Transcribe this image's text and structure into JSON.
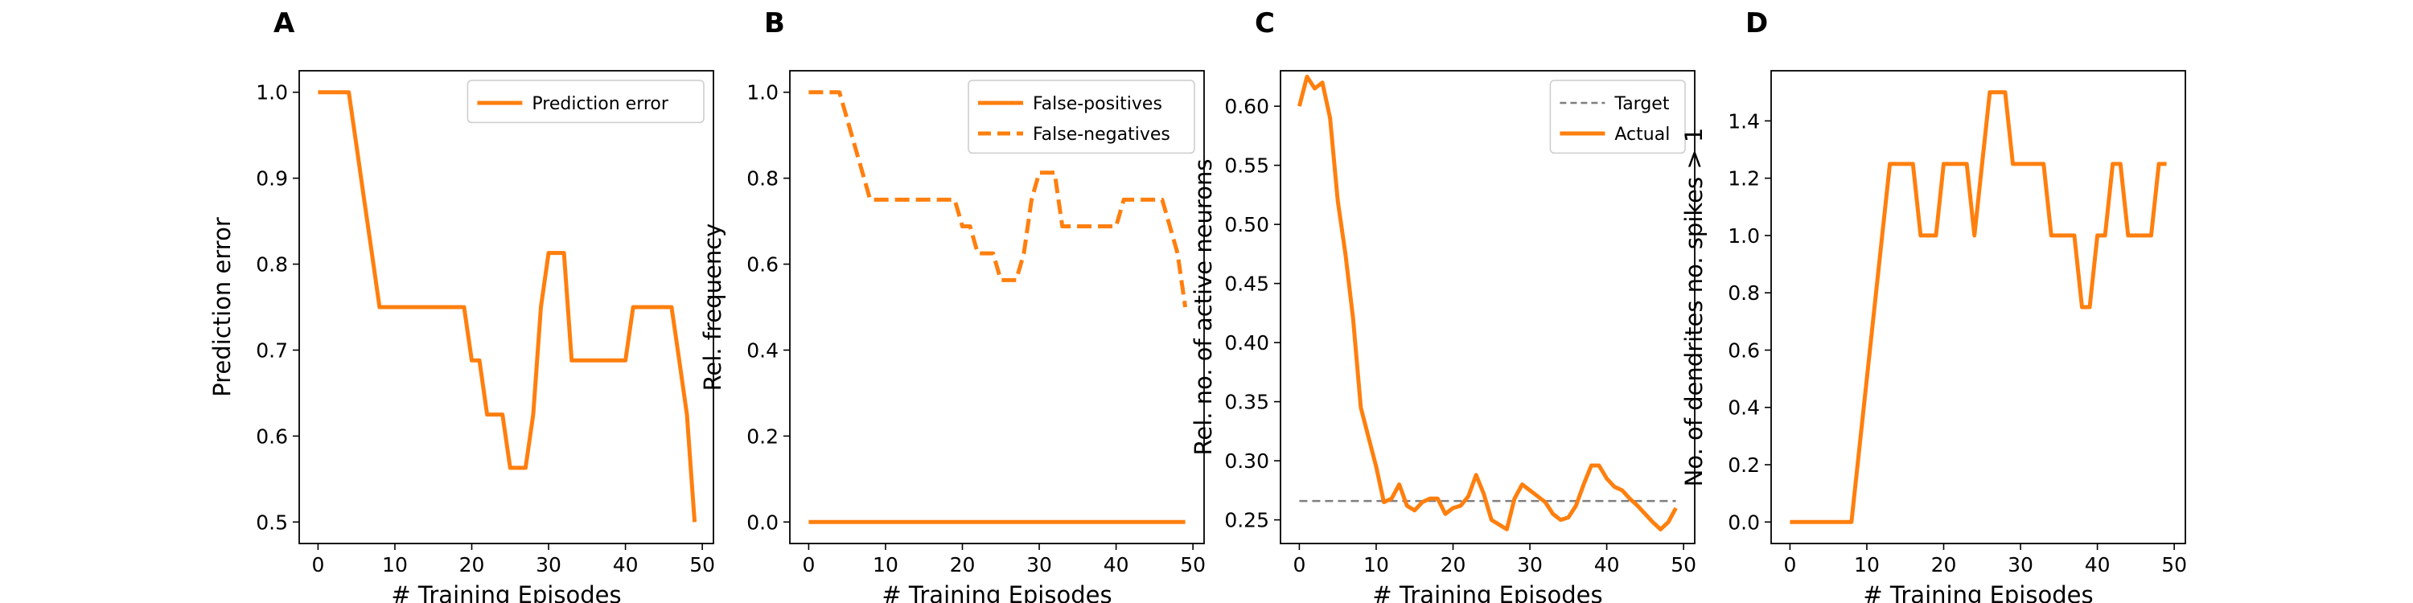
{
  "chart_data": [
    {
      "panel_label": "A",
      "type": "line",
      "xlabel": "# Training Episodes",
      "ylabel": "Prediction error",
      "xlim": [
        -2.45,
        51.45
      ],
      "ylim": [
        0.475,
        1.025
      ],
      "xticks": [
        0,
        10,
        20,
        30,
        40,
        50
      ],
      "xtick_labels": [
        "0",
        "10",
        "20",
        "30",
        "40",
        "50"
      ],
      "yticks": [
        0.5,
        0.6,
        0.7,
        0.8,
        0.9,
        1.0
      ],
      "ytick_labels": [
        "0.5",
        "0.6",
        "0.7",
        "0.8",
        "0.9",
        "1.0"
      ],
      "grid": false,
      "legend_position": "upper right",
      "series": [
        {
          "name": "Prediction error",
          "color": "#ff7f0e",
          "dash": "solid",
          "x": [
            0,
            1,
            2,
            3,
            4,
            5,
            6,
            7,
            8,
            9,
            10,
            11,
            12,
            13,
            14,
            15,
            16,
            17,
            18,
            19,
            20,
            21,
            22,
            23,
            24,
            25,
            26,
            27,
            28,
            29,
            30,
            31,
            32,
            33,
            34,
            35,
            36,
            37,
            38,
            39,
            40,
            41,
            42,
            43,
            44,
            45,
            46,
            47,
            48,
            49
          ],
          "y": [
            1.0,
            1.0,
            1.0,
            1.0,
            1.0,
            0.938,
            0.875,
            0.813,
            0.75,
            0.75,
            0.75,
            0.75,
            0.75,
            0.75,
            0.75,
            0.75,
            0.75,
            0.75,
            0.75,
            0.75,
            0.688,
            0.688,
            0.625,
            0.625,
            0.625,
            0.563,
            0.563,
            0.563,
            0.625,
            0.75,
            0.813,
            0.813,
            0.813,
            0.688,
            0.688,
            0.688,
            0.688,
            0.688,
            0.688,
            0.688,
            0.688,
            0.75,
            0.75,
            0.75,
            0.75,
            0.75,
            0.75,
            0.688,
            0.625,
            0.5
          ]
        }
      ]
    },
    {
      "panel_label": "B",
      "type": "line",
      "xlabel": "# Training Episodes",
      "ylabel": "Rel. frequency",
      "xlim": [
        -2.45,
        51.45
      ],
      "ylim": [
        -0.05,
        1.05
      ],
      "xticks": [
        0,
        10,
        20,
        30,
        40,
        50
      ],
      "xtick_labels": [
        "0",
        "10",
        "20",
        "30",
        "40",
        "50"
      ],
      "yticks": [
        0.0,
        0.2,
        0.4,
        0.6,
        0.8,
        1.0
      ],
      "ytick_labels": [
        "0.0",
        "0.2",
        "0.4",
        "0.6",
        "0.8",
        "1.0"
      ],
      "grid": false,
      "legend_position": "upper right",
      "series": [
        {
          "name": "False-positives",
          "color": "#ff7f0e",
          "dash": "solid",
          "x": [
            0,
            1,
            2,
            3,
            4,
            5,
            6,
            7,
            8,
            9,
            10,
            11,
            12,
            13,
            14,
            15,
            16,
            17,
            18,
            19,
            20,
            21,
            22,
            23,
            24,
            25,
            26,
            27,
            28,
            29,
            30,
            31,
            32,
            33,
            34,
            35,
            36,
            37,
            38,
            39,
            40,
            41,
            42,
            43,
            44,
            45,
            46,
            47,
            48,
            49
          ],
          "y": [
            0,
            0,
            0,
            0,
            0,
            0,
            0,
            0,
            0,
            0,
            0,
            0,
            0,
            0,
            0,
            0,
            0,
            0,
            0,
            0,
            0,
            0,
            0,
            0,
            0,
            0,
            0,
            0,
            0,
            0,
            0,
            0,
            0,
            0,
            0,
            0,
            0,
            0,
            0,
            0,
            0,
            0,
            0,
            0,
            0,
            0,
            0,
            0,
            0,
            0
          ]
        },
        {
          "name": "False-negatives",
          "color": "#ff7f0e",
          "dash": "dashed",
          "x": [
            0,
            1,
            2,
            3,
            4,
            5,
            6,
            7,
            8,
            9,
            10,
            11,
            12,
            13,
            14,
            15,
            16,
            17,
            18,
            19,
            20,
            21,
            22,
            23,
            24,
            25,
            26,
            27,
            28,
            29,
            30,
            31,
            32,
            33,
            34,
            35,
            36,
            37,
            38,
            39,
            40,
            41,
            42,
            43,
            44,
            45,
            46,
            47,
            48,
            49
          ],
          "y": [
            1.0,
            1.0,
            1.0,
            1.0,
            1.0,
            0.938,
            0.875,
            0.813,
            0.75,
            0.75,
            0.75,
            0.75,
            0.75,
            0.75,
            0.75,
            0.75,
            0.75,
            0.75,
            0.75,
            0.75,
            0.688,
            0.688,
            0.625,
            0.625,
            0.625,
            0.563,
            0.563,
            0.563,
            0.625,
            0.75,
            0.813,
            0.813,
            0.813,
            0.688,
            0.688,
            0.688,
            0.688,
            0.688,
            0.688,
            0.688,
            0.688,
            0.75,
            0.75,
            0.75,
            0.75,
            0.75,
            0.75,
            0.688,
            0.625,
            0.5
          ]
        }
      ]
    },
    {
      "panel_label": "C",
      "type": "line",
      "xlabel": "# Training Episodes",
      "ylabel": "Rel. no. of active neurons",
      "xlim": [
        -2.45,
        51.45
      ],
      "ylim": [
        0.23,
        0.63
      ],
      "xticks": [
        0,
        10,
        20,
        30,
        40,
        50
      ],
      "xtick_labels": [
        "0",
        "10",
        "20",
        "30",
        "40",
        "50"
      ],
      "yticks": [
        0.25,
        0.3,
        0.35,
        0.4,
        0.45,
        0.5,
        0.55,
        0.6
      ],
      "ytick_labels": [
        "0.25",
        "0.30",
        "0.35",
        "0.40",
        "0.45",
        "0.50",
        "0.55",
        "0.60"
      ],
      "grid": false,
      "legend_position": "upper right",
      "series": [
        {
          "name": "Target",
          "color": "#7f7f7f",
          "dash": "dashed",
          "x": [
            0,
            49
          ],
          "y": [
            0.266,
            0.266
          ]
        },
        {
          "name": "Actual",
          "color": "#ff7f0e",
          "dash": "solid",
          "x": [
            0,
            1,
            2,
            3,
            4,
            5,
            6,
            7,
            8,
            9,
            10,
            11,
            12,
            13,
            14,
            15,
            16,
            17,
            18,
            19,
            20,
            21,
            22,
            23,
            24,
            25,
            26,
            27,
            28,
            29,
            30,
            31,
            32,
            33,
            34,
            35,
            36,
            37,
            38,
            39,
            40,
            41,
            42,
            43,
            44,
            45,
            46,
            47,
            48,
            49
          ],
          "y": [
            0.6,
            0.625,
            0.615,
            0.62,
            0.59,
            0.52,
            0.475,
            0.42,
            0.345,
            0.32,
            0.295,
            0.265,
            0.268,
            0.28,
            0.262,
            0.258,
            0.265,
            0.268,
            0.268,
            0.255,
            0.26,
            0.262,
            0.27,
            0.288,
            0.272,
            0.25,
            0.246,
            0.242,
            0.268,
            0.28,
            0.275,
            0.27,
            0.265,
            0.255,
            0.25,
            0.252,
            0.262,
            0.28,
            0.296,
            0.296,
            0.285,
            0.278,
            0.275,
            0.268,
            0.262,
            0.255,
            0.248,
            0.242,
            0.248,
            0.26
          ]
        }
      ]
    },
    {
      "panel_label": "D",
      "type": "line",
      "xlabel": "# Training Episodes",
      "ylabel": "No. of dendrites no. spikes > 1",
      "xlim": [
        -2.45,
        51.45
      ],
      "ylim": [
        -0.075,
        1.575
      ],
      "xticks": [
        0,
        10,
        20,
        30,
        40,
        50
      ],
      "xtick_labels": [
        "0",
        "10",
        "20",
        "30",
        "40",
        "50"
      ],
      "yticks": [
        0.0,
        0.2,
        0.4,
        0.6,
        0.8,
        1.0,
        1.2,
        1.4
      ],
      "ytick_labels": [
        "0.0",
        "0.2",
        "0.4",
        "0.6",
        "0.8",
        "1.0",
        "1.2",
        "1.4"
      ],
      "grid": false,
      "legend_position": "none",
      "series": [
        {
          "color": "#ff7f0e",
          "dash": "solid",
          "x": [
            0,
            1,
            2,
            3,
            4,
            5,
            6,
            7,
            8,
            9,
            10,
            11,
            12,
            13,
            14,
            15,
            16,
            17,
            18,
            19,
            20,
            21,
            22,
            23,
            24,
            25,
            26,
            27,
            28,
            29,
            30,
            31,
            32,
            33,
            34,
            35,
            36,
            37,
            38,
            39,
            40,
            41,
            42,
            43,
            44,
            45,
            46,
            47,
            48,
            49
          ],
          "y": [
            0,
            0,
            0,
            0,
            0,
            0,
            0,
            0,
            0,
            0.25,
            0.5,
            0.75,
            1.0,
            1.25,
            1.25,
            1.25,
            1.25,
            1.0,
            1.0,
            1.0,
            1.25,
            1.25,
            1.25,
            1.25,
            1.0,
            1.25,
            1.5,
            1.5,
            1.5,
            1.25,
            1.25,
            1.25,
            1.25,
            1.25,
            1.0,
            1.0,
            1.0,
            1.0,
            0.75,
            0.75,
            1.0,
            1.0,
            1.25,
            1.25,
            1.0,
            1.0,
            1.0,
            1.0,
            1.25,
            1.25
          ]
        }
      ]
    }
  ]
}
